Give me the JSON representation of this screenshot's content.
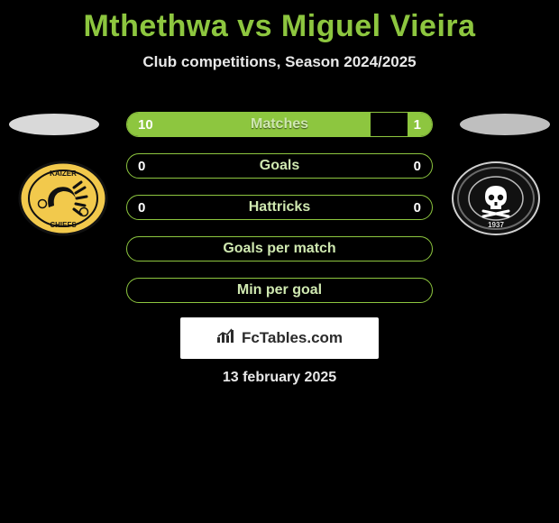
{
  "header": {
    "title": "Mthethwa vs Miguel Vieira",
    "subtitle": "Club competitions, Season 2024/2025",
    "title_color": "#8dc63f",
    "title_fontsize": 34
  },
  "players": {
    "left": {
      "name": "Mthethwa",
      "club": "Kaizer Chiefs",
      "ellipse_color": "#d9d9d9"
    },
    "right": {
      "name": "Miguel Vieira",
      "club": "Orlando Pirates",
      "ellipse_color": "#bfbfbf"
    }
  },
  "badges": {
    "left": {
      "outer_fill": "#f2c94c",
      "outer_stroke": "#111111",
      "inner_fill": "#111111",
      "text_top": "KAIZER",
      "text_bottom": "CHIEFS"
    },
    "right": {
      "outer_fill": "#111111",
      "outer_stroke": "#d0d0d0",
      "inner_fill": "#ffffff",
      "year": "1937",
      "name": "ORLANDO PIRATES"
    }
  },
  "stats": {
    "bar_border_color": "#8dc63f",
    "bar_fill_color": "#8dc63f",
    "label_color": "#cfe8b0",
    "value_color": "#ffffff",
    "rows": [
      {
        "label": "Matches",
        "left": "10",
        "right": "1",
        "fill_left_pct": 80,
        "fill_right_pct": 8
      },
      {
        "label": "Goals",
        "left": "0",
        "right": "0",
        "fill_left_pct": 0,
        "fill_right_pct": 0
      },
      {
        "label": "Hattricks",
        "left": "0",
        "right": "0",
        "fill_left_pct": 0,
        "fill_right_pct": 0
      },
      {
        "label": "Goals per match",
        "left": "",
        "right": "",
        "fill_left_pct": 0,
        "fill_right_pct": 0
      },
      {
        "label": "Min per goal",
        "left": "",
        "right": "",
        "fill_left_pct": 0,
        "fill_right_pct": 0
      }
    ]
  },
  "footer": {
    "site_label": "FcTables.com",
    "date": "13 february 2025"
  },
  "colors": {
    "background": "#000000",
    "accent": "#8dc63f",
    "text_light": "#e8e8e8"
  }
}
